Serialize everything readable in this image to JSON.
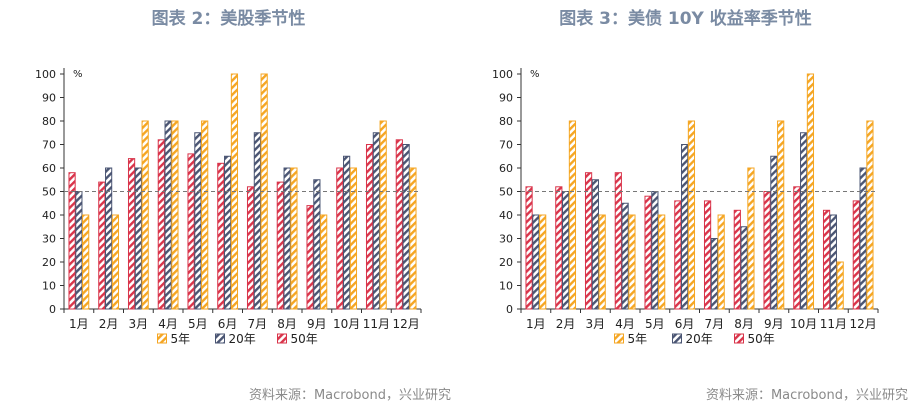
{
  "charts": [
    {
      "title": "图表 2：美股季节性",
      "source": "资料来源：Macrobond，兴业研究"
    },
    {
      "title": "图表 3：美债 10Y 收益率季节性",
      "source": "资料来源：Macrobond，兴业研究"
    }
  ],
  "colors": {
    "5y": "#f5a623",
    "20y": "#4a5573",
    "50y": "#d9344a",
    "refline": "#777777"
  },
  "chart_data": [
    {
      "type": "bar",
      "title": "图表 2：美股季节性",
      "ylabel": "%",
      "ylim": [
        0,
        100
      ],
      "yticks": [
        0,
        10,
        20,
        30,
        40,
        50,
        60,
        70,
        80,
        90,
        100
      ],
      "reference_line": 50,
      "legend_position": "bottom",
      "categories": [
        "1月",
        "2月",
        "3月",
        "4月",
        "5月",
        "6月",
        "7月",
        "8月",
        "9月",
        "10月",
        "11月",
        "12月"
      ],
      "series": [
        {
          "name": "50年",
          "key": "50y",
          "values": [
            58,
            54,
            64,
            72,
            66,
            62,
            52,
            54,
            44,
            60,
            70,
            72
          ]
        },
        {
          "name": "20年",
          "key": "20y",
          "values": [
            50,
            60,
            60,
            80,
            75,
            65,
            75,
            60,
            55,
            65,
            75,
            70
          ]
        },
        {
          "name": "5年",
          "key": "5y",
          "values": [
            40,
            40,
            80,
            80,
            80,
            100,
            100,
            60,
            40,
            60,
            80,
            60
          ]
        }
      ]
    },
    {
      "type": "bar",
      "title": "图表 3：美债 10Y 收益率季节性",
      "ylabel": "%",
      "ylim": [
        0,
        100
      ],
      "yticks": [
        0,
        10,
        20,
        30,
        40,
        50,
        60,
        70,
        80,
        90,
        100
      ],
      "reference_line": 50,
      "legend_position": "bottom",
      "categories": [
        "1月",
        "2月",
        "3月",
        "4月",
        "5月",
        "6月",
        "7月",
        "8月",
        "9月",
        "10月",
        "11月",
        "12月"
      ],
      "series": [
        {
          "name": "50年",
          "key": "50y",
          "values": [
            52,
            52,
            58,
            58,
            48,
            46,
            46,
            42,
            50,
            52,
            42,
            46
          ]
        },
        {
          "name": "20年",
          "key": "20y",
          "values": [
            40,
            50,
            55,
            45,
            50,
            70,
            30,
            35,
            65,
            75,
            40,
            60
          ]
        },
        {
          "name": "5年",
          "key": "5y",
          "values": [
            40,
            80,
            40,
            40,
            40,
            80,
            40,
            60,
            80,
            100,
            20,
            80
          ]
        }
      ]
    }
  ],
  "legend_order": [
    "5y",
    "20y",
    "50y"
  ]
}
